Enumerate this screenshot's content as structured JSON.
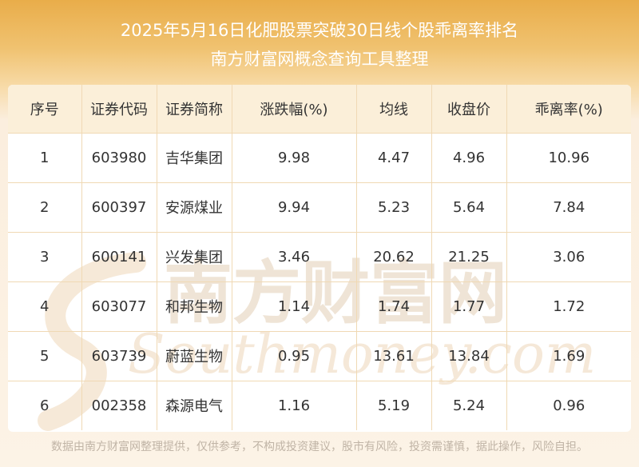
{
  "header": {
    "title_line1": "2025年5月16日化肥股票突破30日线个股乖离率排名",
    "title_line2": "南方财富网概念查询工具整理"
  },
  "table": {
    "columns": [
      "序号",
      "证券代码",
      "证券简称",
      "涨跌幅(%)",
      "均线",
      "收盘价",
      "乖离率(%)"
    ],
    "rows": [
      [
        "1",
        "603980",
        "吉华集团",
        "9.98",
        "4.47",
        "4.96",
        "10.96"
      ],
      [
        "2",
        "600397",
        "安源煤业",
        "9.94",
        "5.23",
        "5.64",
        "7.84"
      ],
      [
        "3",
        "600141",
        "兴发集团",
        "3.46",
        "20.62",
        "21.25",
        "3.06"
      ],
      [
        "4",
        "603077",
        "和邦生物",
        "1.14",
        "1.74",
        "1.77",
        "1.72"
      ],
      [
        "5",
        "603739",
        "蔚蓝生物",
        "0.95",
        "13.61",
        "13.84",
        "1.69"
      ],
      [
        "6",
        "002358",
        "森源电气",
        "1.16",
        "5.19",
        "5.24",
        "0.96"
      ]
    ]
  },
  "watermark": {
    "cn": "南方财富网",
    "en": "Southmoney.com"
  },
  "footer": {
    "disclaimer": "数据由南方财富网整理提供，仅供参考，不构成投资建议，股市有风险，投资需谨慎，据此操作，风险自担。"
  },
  "colors": {
    "header_gradient_top": "#e9ad4a",
    "table_header_bg": "#fbefd9",
    "grid_line": "#f0d9b4",
    "watermark": "#efe4d6"
  }
}
